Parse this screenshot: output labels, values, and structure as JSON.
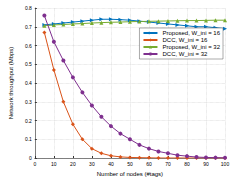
{
  "chart_data": {
    "type": "line",
    "x_label": "Number of nodes (#tags)",
    "y_label": "Network throughput (Mbps)",
    "x": [
      5,
      10,
      15,
      20,
      25,
      30,
      35,
      40,
      45,
      50,
      55,
      60,
      65,
      70,
      75,
      80,
      85,
      90,
      95,
      100
    ],
    "series": [
      {
        "name": "Proposed, W_ini = 16",
        "color": "#0072BD",
        "marker": "triangle-right",
        "values": [
          0.71,
          0.715,
          0.72,
          0.725,
          0.73,
          0.735,
          0.74,
          0.74,
          0.738,
          0.735,
          0.73,
          0.725,
          0.72,
          0.715,
          0.71,
          0.705,
          0.7,
          0.7,
          0.695,
          0.69
        ]
      },
      {
        "name": "DCC, W_ini = 16",
        "color": "#D95319",
        "marker": "diamond",
        "values": [
          0.67,
          0.47,
          0.3,
          0.18,
          0.1,
          0.05,
          0.025,
          0.012,
          0.006,
          0.003,
          0.002,
          0.001,
          0,
          0,
          0,
          0,
          0,
          0,
          0,
          0
        ]
      },
      {
        "name": "Proposed, W_ini = 32",
        "color": "#77AC30",
        "marker": "triangle",
        "values": [
          0.705,
          0.71,
          0.712,
          0.715,
          0.717,
          0.72,
          0.722,
          0.724,
          0.725,
          0.727,
          0.728,
          0.729,
          0.73,
          0.731,
          0.732,
          0.733,
          0.733,
          0.734,
          0.735,
          0.735
        ]
      },
      {
        "name": "DCC, W_ini = 32",
        "color": "#7E2F8E",
        "marker": "circle",
        "values": [
          0.76,
          0.62,
          0.52,
          0.43,
          0.35,
          0.28,
          0.22,
          0.17,
          0.13,
          0.1,
          0.07,
          0.05,
          0.035,
          0.025,
          0.015,
          0.01,
          0.005,
          0.003,
          0.002,
          0.001
        ]
      }
    ],
    "xlim": [
      0,
      100
    ],
    "xticks": [
      0,
      10,
      20,
      30,
      40,
      50,
      60,
      70,
      80,
      90,
      100
    ],
    "ylim": [
      0,
      0.8
    ],
    "yticks": [
      0,
      0.1,
      0.2,
      0.3,
      0.4,
      0.5,
      0.6,
      0.7,
      0.8
    ],
    "grid": true,
    "legend": "upper right"
  }
}
